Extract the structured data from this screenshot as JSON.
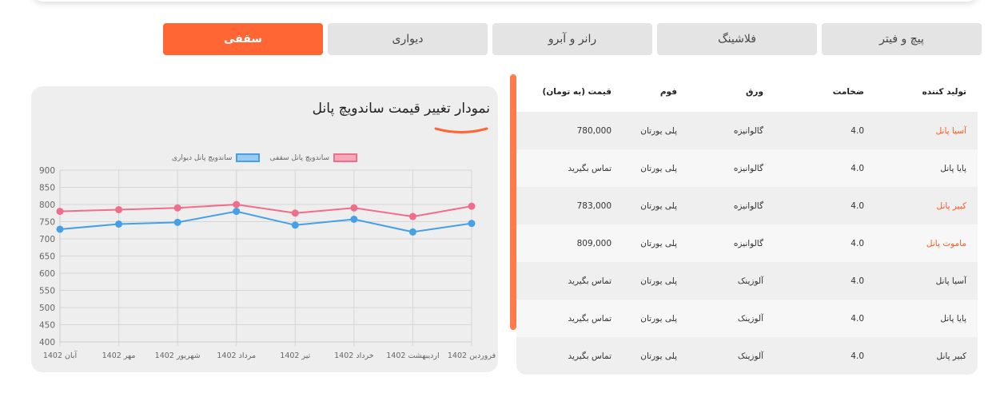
{
  "tabs": [
    {
      "label": "سقفی",
      "active": true
    },
    {
      "label": "دیواری",
      "active": false
    },
    {
      "label": "رانر و آبرو",
      "active": false
    },
    {
      "label": "فلاشینگ",
      "active": false
    },
    {
      "label": "پیچ و فیتر",
      "active": false
    }
  ],
  "chart": {
    "title": "نمودار تغییر قیمت ساندویچ پانل"
  },
  "chart_data": {
    "type": "line",
    "categories": [
      "فروردین 1402",
      "اردیبهشت 1402",
      "خرداد 1402",
      "تیر 1402",
      "مرداد 1402",
      "شهریور 1402",
      "مهر 1402",
      "آبان 1402"
    ],
    "series": [
      {
        "name": "ساندویچ پانل سقفی",
        "values": [
          795,
          765,
          790,
          775,
          800,
          790,
          785,
          780
        ],
        "color": "#f06d8b",
        "fill": "#f7a8ba"
      },
      {
        "name": "ساندویچ پانل دیواری",
        "values": [
          745,
          720,
          757,
          740,
          780,
          748,
          743,
          728
        ],
        "color": "#45a0e6",
        "fill": "#9ccbf0"
      }
    ],
    "ylim": [
      400,
      900
    ],
    "yticks": [
      900,
      850,
      800,
      750,
      700,
      650,
      600,
      550,
      500,
      450,
      400
    ],
    "grid": true,
    "legend": "top-center"
  },
  "table": {
    "headers": {
      "producer": "تولید کننده",
      "thickness": "ضخامت",
      "sheet": "ورق",
      "foam": "فوم",
      "price": "قیمت (به تومان)"
    },
    "rows": [
      {
        "producer": "آسیا پانل",
        "thickness": "4.0",
        "sheet": "گالوانیزه",
        "foam": "پلی یورتان",
        "price": "780,000",
        "link": true
      },
      {
        "producer": "پایا پانل",
        "thickness": "4.0",
        "sheet": "گالوانیزه",
        "foam": "پلی یورتان",
        "price": "تماس بگیرید",
        "link": false
      },
      {
        "producer": "کبیر پانل",
        "thickness": "4.0",
        "sheet": "گالوانیزه",
        "foam": "پلی یورتان",
        "price": "783,000",
        "link": true
      },
      {
        "producer": "ماموت پانل",
        "thickness": "4.0",
        "sheet": "گالوانیزه",
        "foam": "پلی یورتان",
        "price": "809,000",
        "link": true
      },
      {
        "producer": "آسیا پانل",
        "thickness": "4.0",
        "sheet": "آلوزینک",
        "foam": "پلی یورتان",
        "price": "تماس بگیرید",
        "link": false
      },
      {
        "producer": "پایا پانل",
        "thickness": "4.0",
        "sheet": "آلوزینک",
        "foam": "پلی یورتان",
        "price": "تماس بگیرید",
        "link": false
      },
      {
        "producer": "کبیر پانل",
        "thickness": "4.0",
        "sheet": "آلوزینک",
        "foam": "پلی یورتان",
        "price": "تماس بگیرید",
        "link": false
      }
    ]
  },
  "colors": {
    "accent": "#ff6633",
    "link": "#ff5a22"
  }
}
